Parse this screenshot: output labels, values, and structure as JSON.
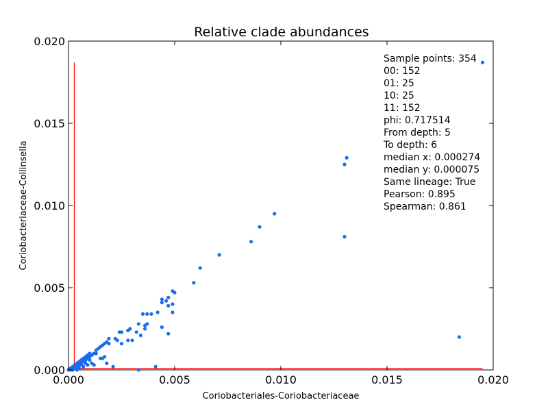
{
  "chart_data": {
    "type": "scatter",
    "title": "Relative clade abundances",
    "xlabel": "Coriobacteriales-Coriobacteriaceae",
    "ylabel": "Coriobacteriaceae-Collinsella",
    "xlim": [
      0,
      0.02
    ],
    "ylim": [
      0,
      0.02
    ],
    "x_ticks": [
      "0.000",
      "0.005",
      "0.010",
      "0.015",
      "0.020"
    ],
    "y_ticks": [
      "0.000",
      "0.005",
      "0.010",
      "0.015",
      "0.020"
    ],
    "grid": false,
    "point_color": "#1a6cf0",
    "threshold_color": "#ff0000",
    "thresholds": {
      "x": 0.000274,
      "y": 7.5e-05,
      "x_line_top": 0.0187,
      "y_line_right": 0.0195
    },
    "annotations": [
      "Sample points: 354",
      "00: 152",
      "01: 25",
      "10: 25",
      "11: 152",
      "phi: 0.717514",
      "From depth: 5",
      "To depth: 6",
      "median x: 0.000274",
      "median y: 0.000075",
      "Same lineage:  True",
      "Pearson: 0.895",
      "Spearman: 0.861"
    ],
    "points": [
      {
        "x": 0.0195,
        "y": 0.0187
      },
      {
        "x": 0.0131,
        "y": 0.0129
      },
      {
        "x": 0.013,
        "y": 0.0125
      },
      {
        "x": 0.013,
        "y": 0.0081
      },
      {
        "x": 0.0184,
        "y": 0.002
      },
      {
        "x": 0.0097,
        "y": 0.0095
      },
      {
        "x": 0.009,
        "y": 0.0087
      },
      {
        "x": 0.0086,
        "y": 0.0078
      },
      {
        "x": 0.0071,
        "y": 0.007
      },
      {
        "x": 0.0062,
        "y": 0.0062
      },
      {
        "x": 0.0059,
        "y": 0.0053
      },
      {
        "x": 0.005,
        "y": 0.0047
      },
      {
        "x": 0.0049,
        "y": 0.0048
      },
      {
        "x": 0.0049,
        "y": 0.004
      },
      {
        "x": 0.0049,
        "y": 0.0035
      },
      {
        "x": 0.0047,
        "y": 0.0044
      },
      {
        "x": 0.0047,
        "y": 0.0039
      },
      {
        "x": 0.0046,
        "y": 0.0042
      },
      {
        "x": 0.0044,
        "y": 0.0043
      },
      {
        "x": 0.0044,
        "y": 0.0041
      },
      {
        "x": 0.0044,
        "y": 0.0026
      },
      {
        "x": 0.0042,
        "y": 0.0035
      },
      {
        "x": 0.0047,
        "y": 0.0022
      },
      {
        "x": 0.0039,
        "y": 0.0034
      },
      {
        "x": 0.0037,
        "y": 0.0034
      },
      {
        "x": 0.0035,
        "y": 0.0034
      },
      {
        "x": 0.0037,
        "y": 0.0028
      },
      {
        "x": 0.0036,
        "y": 0.0027
      },
      {
        "x": 0.0036,
        "y": 0.0025
      },
      {
        "x": 0.0033,
        "y": 0.0028
      },
      {
        "x": 0.0032,
        "y": 0.0023
      },
      {
        "x": 0.0034,
        "y": 0.0021
      },
      {
        "x": 0.003,
        "y": 0.0018
      },
      {
        "x": 0.0029,
        "y": 0.0025
      },
      {
        "x": 0.0028,
        "y": 0.0024
      },
      {
        "x": 0.0028,
        "y": 0.0018
      },
      {
        "x": 0.0025,
        "y": 0.0023
      },
      {
        "x": 0.0024,
        "y": 0.0023
      },
      {
        "x": 0.0025,
        "y": 0.0016
      },
      {
        "x": 0.0023,
        "y": 0.0018
      },
      {
        "x": 0.0022,
        "y": 0.0019
      },
      {
        "x": 0.0019,
        "y": 0.0019
      },
      {
        "x": 0.0019,
        "y": 0.0016
      },
      {
        "x": 0.0018,
        "y": 0.0017
      },
      {
        "x": 0.0017,
        "y": 0.0016
      },
      {
        "x": 0.0016,
        "y": 0.0015
      },
      {
        "x": 0.0015,
        "y": 0.0014
      },
      {
        "x": 0.0014,
        "y": 0.0013
      },
      {
        "x": 0.0013,
        "y": 0.0012
      },
      {
        "x": 0.0013,
        "y": 0.001
      },
      {
        "x": 0.0017,
        "y": 0.0008
      },
      {
        "x": 0.0016,
        "y": 0.0007
      },
      {
        "x": 0.0015,
        "y": 0.0007
      },
      {
        "x": 0.0018,
        "y": 0.0004
      },
      {
        "x": 0.0021,
        "y": 0.0002
      },
      {
        "x": 0.0041,
        "y": 0.0002
      },
      {
        "x": 0.0033,
        "y": 0.0
      },
      {
        "x": 0.0012,
        "y": 0.001
      },
      {
        "x": 0.0011,
        "y": 0.0009
      },
      {
        "x": 0.001,
        "y": 0.001
      },
      {
        "x": 0.001,
        "y": 0.0008
      },
      {
        "x": 0.0009,
        "y": 0.0009
      },
      {
        "x": 0.0009,
        "y": 0.0007
      },
      {
        "x": 0.0008,
        "y": 0.0008
      },
      {
        "x": 0.0008,
        "y": 0.0006
      },
      {
        "x": 0.0007,
        "y": 0.0007
      },
      {
        "x": 0.0007,
        "y": 0.0005
      },
      {
        "x": 0.0006,
        "y": 0.0006
      },
      {
        "x": 0.0006,
        "y": 0.0004
      },
      {
        "x": 0.0005,
        "y": 0.0005
      },
      {
        "x": 0.0005,
        "y": 0.0003
      },
      {
        "x": 0.0004,
        "y": 0.0004
      },
      {
        "x": 0.0004,
        "y": 0.0002
      },
      {
        "x": 0.0003,
        "y": 0.0003
      },
      {
        "x": 0.0003,
        "y": 0.0001
      },
      {
        "x": 0.0002,
        "y": 0.0002
      },
      {
        "x": 0.0002,
        "y": 0.0001
      },
      {
        "x": 0.0001,
        "y": 0.0001
      },
      {
        "x": 0.0001,
        "y": 0.0
      },
      {
        "x": 0.0012,
        "y": 0.0003
      },
      {
        "x": 0.0011,
        "y": 0.0004
      },
      {
        "x": 0.001,
        "y": 0.0006
      },
      {
        "x": 0.0009,
        "y": 0.0003
      },
      {
        "x": 0.0008,
        "y": 0.0004
      },
      {
        "x": 0.0007,
        "y": 0.0002
      },
      {
        "x": 0.0006,
        "y": 0.0003
      },
      {
        "x": 0.0005,
        "y": 0.0001
      },
      {
        "x": 0.0004,
        "y": 0.0
      },
      {
        "x": 0.0002,
        "y": 0.0
      },
      {
        "x": 0.0,
        "y": 0.0
      }
    ]
  }
}
